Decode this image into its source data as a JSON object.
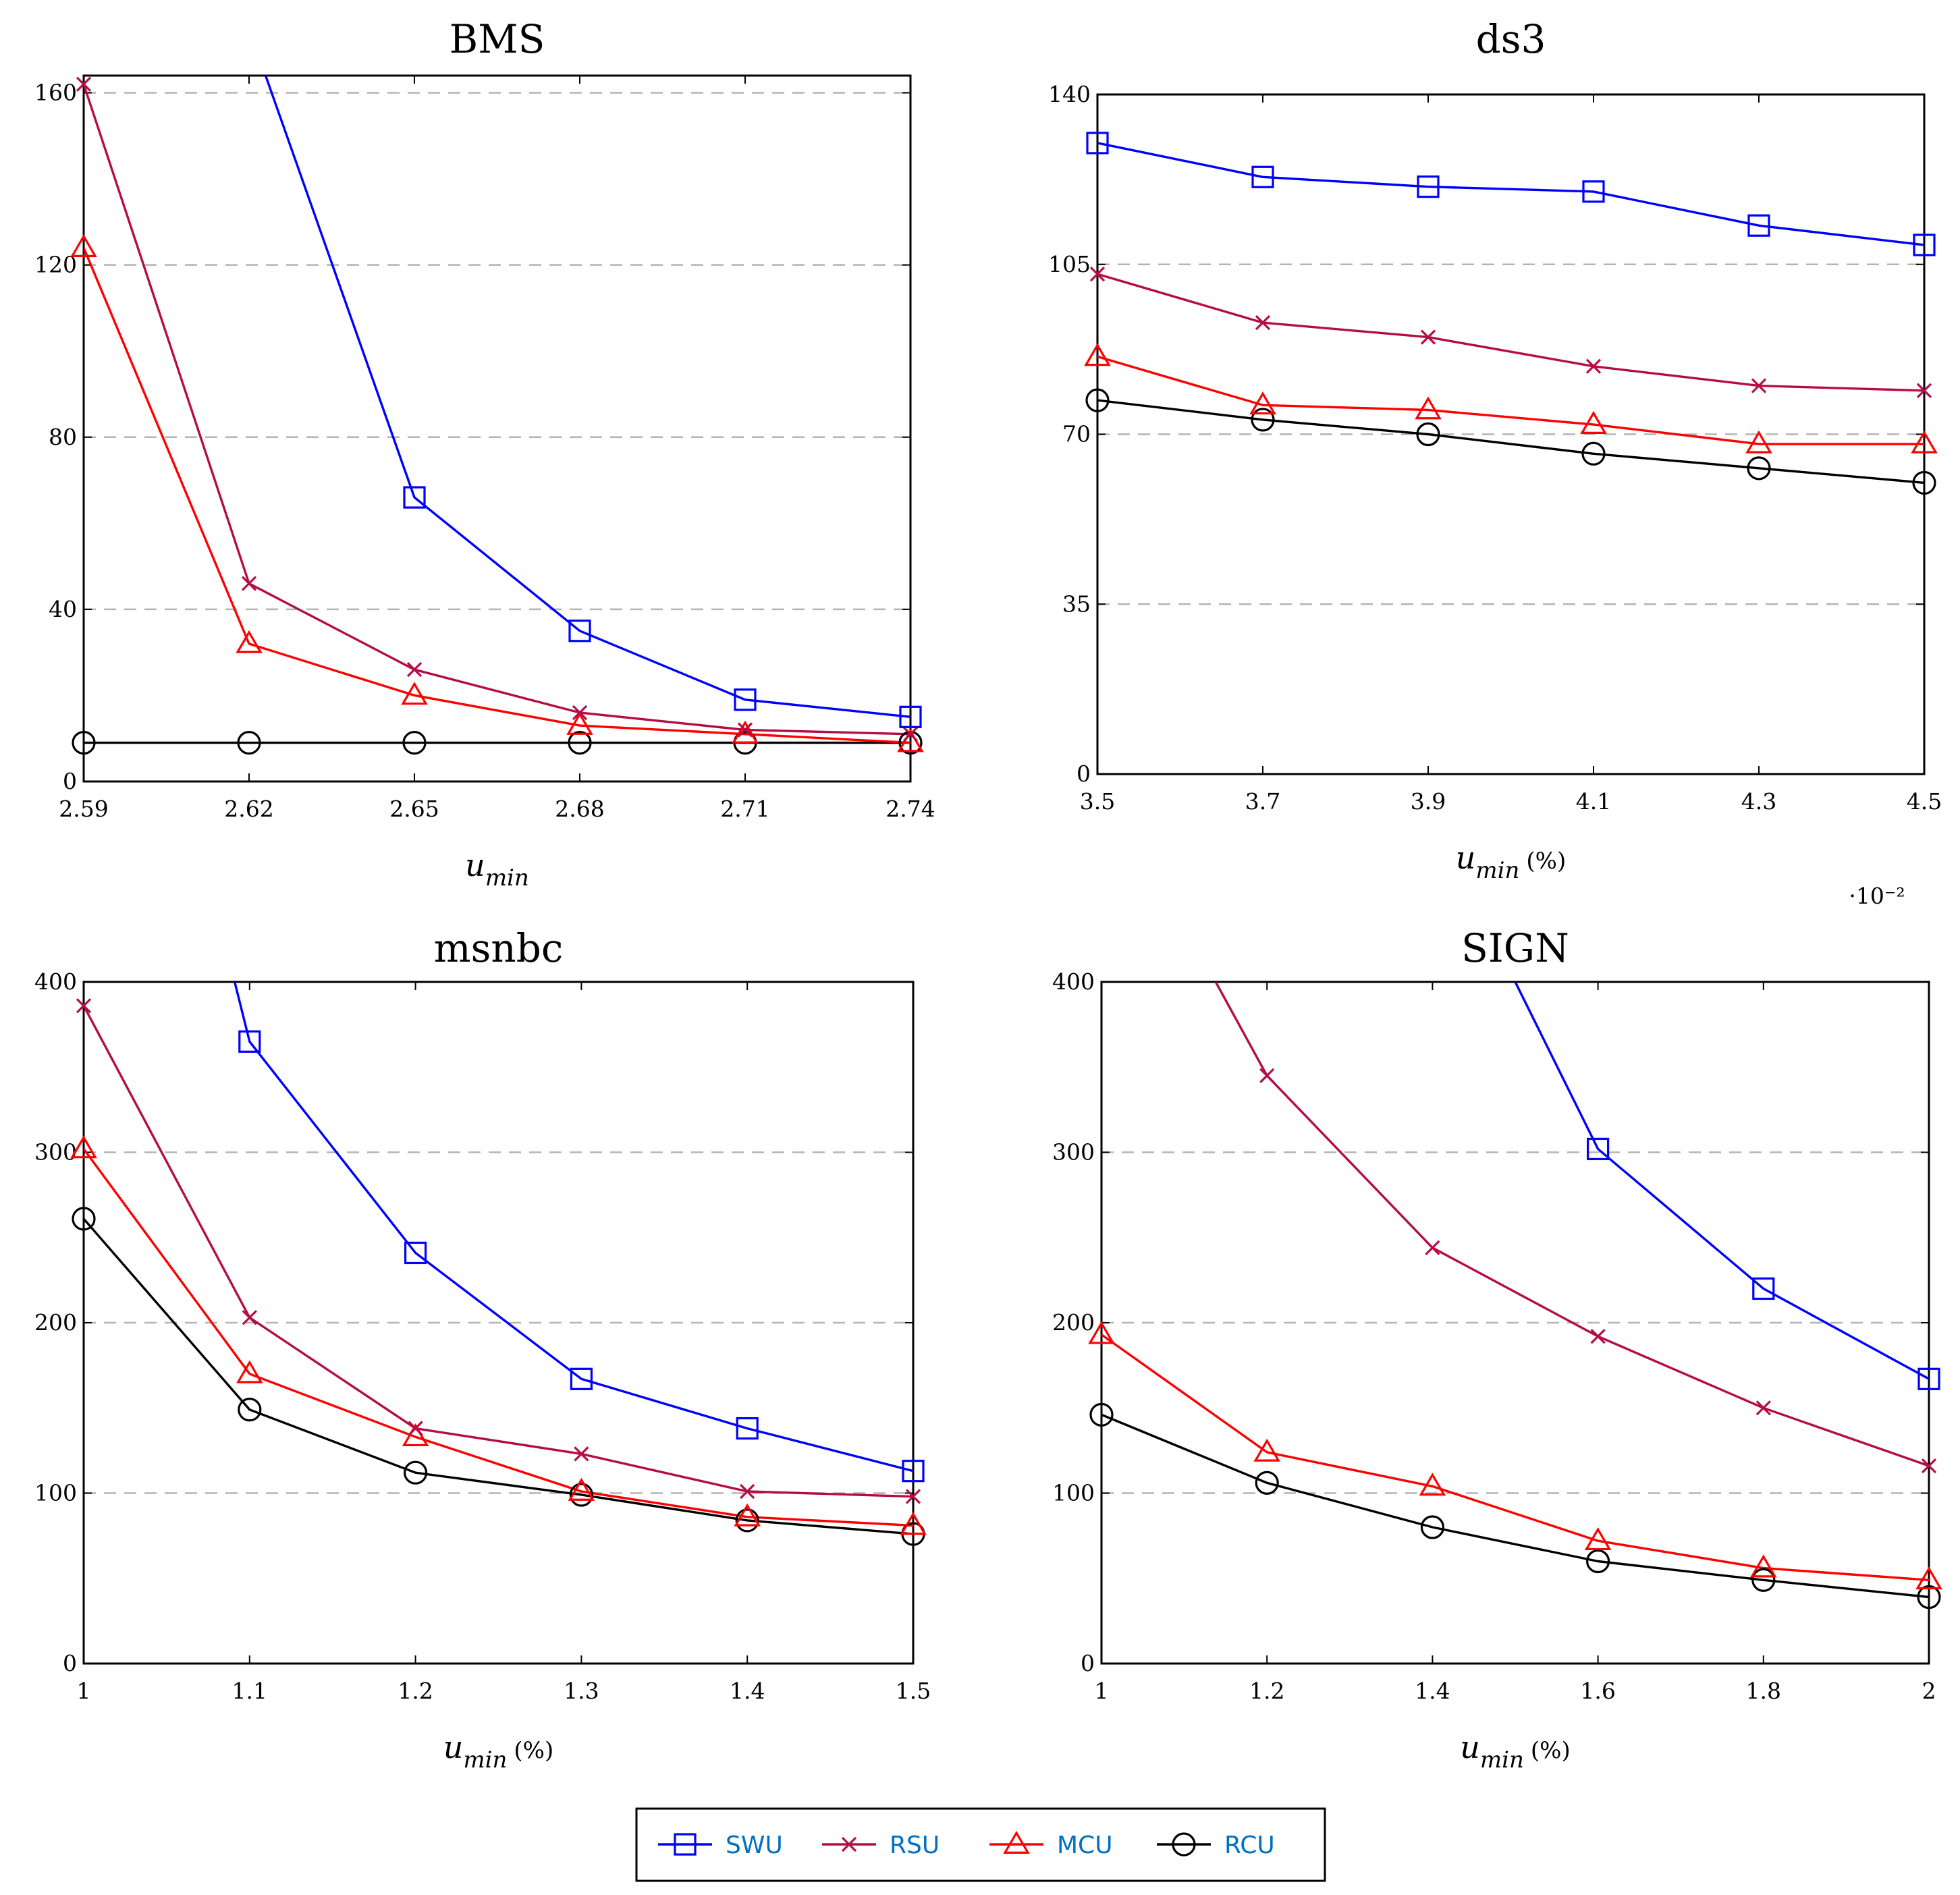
{
  "colors": {
    "SWU": "#0000ff",
    "RSU": "#b40d45",
    "MCU": "#ff0000",
    "RCU": "#000000",
    "legend_text": "#0070c0"
  },
  "legend": [
    {
      "name": "SWU",
      "marker": "square"
    },
    {
      "name": "RSU",
      "marker": "cross"
    },
    {
      "name": "MCU",
      "marker": "triangle"
    },
    {
      "name": "RCU",
      "marker": "circle"
    }
  ],
  "chart_data": [
    {
      "type": "line",
      "title": "BMS",
      "xlabel_var": "u",
      "xlabel_sub": "min",
      "xlabel_unit": "",
      "x": [
        2.59,
        2.62,
        2.65,
        2.68,
        2.71,
        2.74
      ],
      "xtick_labels": [
        "2.59",
        "2.62",
        "2.65",
        "2.68",
        "2.71",
        "2.74"
      ],
      "xlim": [
        2.59,
        2.74
      ],
      "ylim": [
        0,
        164
      ],
      "yticks": [
        0,
        40,
        80,
        120,
        160
      ],
      "grid": "horizontal-dashed",
      "exponent_note": "",
      "series": [
        {
          "name": "SWU",
          "x": [
            2.623,
            2.65,
            2.68,
            2.71,
            2.74
          ],
          "values": [
            164,
            66,
            35,
            19,
            15
          ],
          "markers": [
            false,
            true,
            true,
            true,
            true
          ]
        },
        {
          "name": "RSU",
          "values": [
            162,
            46,
            26,
            16,
            12,
            11
          ]
        },
        {
          "name": "MCU",
          "values": [
            124,
            32,
            20,
            13,
            11,
            9
          ]
        },
        {
          "name": "RCU",
          "values": [
            9,
            9,
            9,
            9,
            9,
            9
          ]
        }
      ]
    },
    {
      "type": "line",
      "title": "ds3",
      "xlabel_var": "u",
      "xlabel_sub": "min",
      "xlabel_unit": "(%)",
      "x": [
        3.5,
        3.7,
        3.9,
        4.1,
        4.3,
        4.5
      ],
      "xtick_labels": [
        "3.5",
        "3.7",
        "3.9",
        "4.1",
        "4.3",
        "4.5"
      ],
      "xlim": [
        3.5,
        4.5
      ],
      "ylim": [
        0,
        140
      ],
      "yticks": [
        0,
        35,
        70,
        105,
        140
      ],
      "grid": "horizontal-dashed",
      "exponent_note": "·10⁻²",
      "series": [
        {
          "name": "SWU",
          "values": [
            130,
            123,
            121,
            120,
            113,
            109
          ]
        },
        {
          "name": "RSU",
          "values": [
            103,
            93,
            90,
            84,
            80,
            79
          ]
        },
        {
          "name": "MCU",
          "values": [
            86,
            76,
            75,
            72,
            68,
            68
          ]
        },
        {
          "name": "RCU",
          "values": [
            77,
            73,
            70,
            66,
            63,
            60
          ]
        }
      ]
    },
    {
      "type": "line",
      "title": "msnbc",
      "xlabel_var": "u",
      "xlabel_sub": "min",
      "xlabel_unit": "(%)",
      "x": [
        1.0,
        1.1,
        1.2,
        1.3,
        1.4,
        1.5
      ],
      "xtick_labels": [
        "1",
        "1.1",
        "1.2",
        "1.3",
        "1.4",
        "1.5"
      ],
      "xlim": [
        1.0,
        1.5
      ],
      "ylim": [
        0,
        400
      ],
      "yticks": [
        0,
        100,
        200,
        300,
        400
      ],
      "grid": "horizontal-dashed",
      "exponent_note": "",
      "series": [
        {
          "name": "SWU",
          "x": [
            1.091,
            1.1,
            1.2,
            1.3,
            1.4,
            1.5
          ],
          "values": [
            400,
            365,
            241,
            167,
            138,
            113
          ],
          "markers": [
            false,
            true,
            true,
            true,
            true,
            true
          ]
        },
        {
          "name": "RSU",
          "values": [
            386,
            203,
            138,
            123,
            101,
            98
          ]
        },
        {
          "name": "MCU",
          "values": [
            302,
            170,
            133,
            101,
            86,
            81
          ]
        },
        {
          "name": "RCU",
          "values": [
            261,
            149,
            112,
            99,
            84,
            76
          ]
        }
      ]
    },
    {
      "type": "line",
      "title": "SIGN",
      "xlabel_var": "u",
      "xlabel_sub": "min",
      "xlabel_unit": "(%)",
      "x": [
        1.0,
        1.2,
        1.4,
        1.6,
        1.8,
        2.0
      ],
      "xtick_labels": [
        "1",
        "1.2",
        "1.4",
        "1.6",
        "1.8",
        "2"
      ],
      "xlim": [
        1.0,
        2.0
      ],
      "ylim": [
        0,
        400
      ],
      "yticks": [
        0,
        100,
        200,
        300,
        400
      ],
      "grid": "horizontal-dashed",
      "exponent_note": "",
      "series": [
        {
          "name": "SWU",
          "x": [
            1.5,
            1.6,
            1.8,
            2.0
          ],
          "values": [
            400,
            302,
            220,
            167
          ],
          "markers": [
            false,
            true,
            true,
            true
          ]
        },
        {
          "name": "RSU",
          "x": [
            1.138,
            1.2,
            1.4,
            1.6,
            1.8,
            2.0
          ],
          "values": [
            400,
            345,
            244,
            192,
            150,
            116
          ],
          "markers": [
            false,
            true,
            true,
            true,
            true,
            true
          ]
        },
        {
          "name": "MCU",
          "values": [
            193,
            124,
            104,
            72,
            56,
            49
          ]
        },
        {
          "name": "RCU",
          "values": [
            146,
            106,
            80,
            60,
            49,
            39
          ]
        }
      ]
    }
  ]
}
